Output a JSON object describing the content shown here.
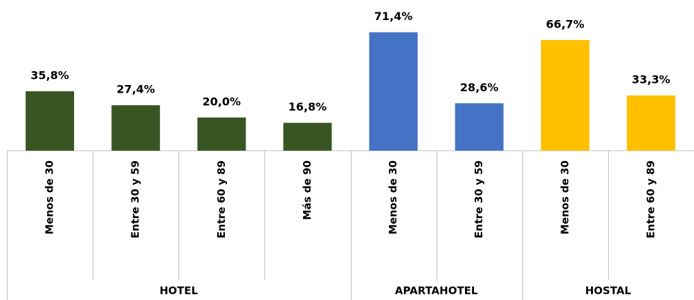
{
  "chart_data": {
    "type": "bar",
    "series": [
      {
        "name": "HOTEL",
        "color": "#375623",
        "categories": [
          "Menos de 30",
          "Entre 30 y 59",
          "Entre 60 y 89",
          "Más de 90"
        ],
        "values": [
          35.8,
          27.4,
          20.0,
          16.8
        ],
        "value_labels": [
          "35,8%",
          "27,4%",
          "20,0%",
          "16,8%"
        ]
      },
      {
        "name": "APARTAHOTEL",
        "color": "#4472c4",
        "categories": [
          "Menos de 30",
          "Entre 30 y 59"
        ],
        "values": [
          71.4,
          28.6
        ],
        "value_labels": [
          "71,4%",
          "28,6%"
        ]
      },
      {
        "name": "HOSTAL",
        "color": "#ffc000",
        "categories": [
          "Menos de 30",
          "Entre 60 y 89"
        ],
        "values": [
          66.7,
          33.3
        ],
        "value_labels": [
          "66,7%",
          "33,3%"
        ]
      }
    ]
  }
}
